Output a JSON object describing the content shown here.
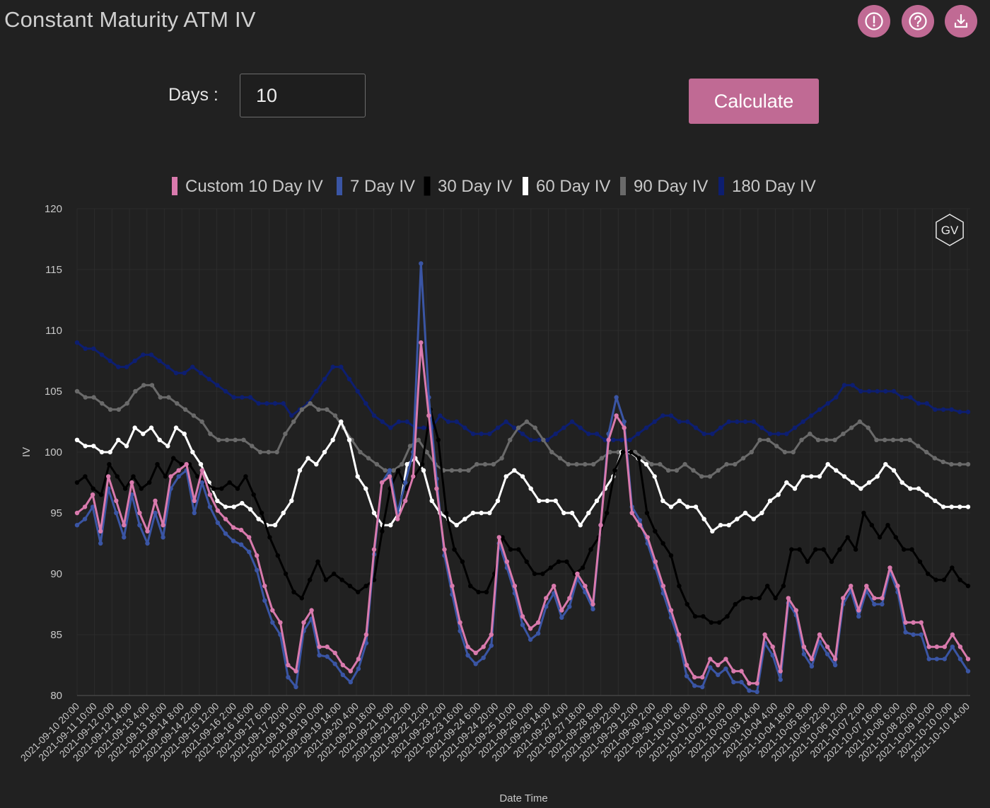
{
  "header": {
    "title": "Constant Maturity ATM IV",
    "icons": [
      "info-icon",
      "help-icon",
      "download-icon"
    ]
  },
  "controls": {
    "days_label": "Days :",
    "days_value": "10",
    "calculate_label": "Calculate"
  },
  "colors": {
    "accent": "#c06a94",
    "background": "#212121"
  },
  "chart_data": {
    "type": "line",
    "xlabel": "Date Time",
    "ylabel": "IV",
    "ylim": [
      80,
      120
    ],
    "yticks": [
      80,
      85,
      90,
      95,
      100,
      105,
      110,
      115,
      120
    ],
    "x_tick_labels": [
      "2021-09-10 20:00",
      "2021-09-11 10:00",
      "2021-09-12 0:00",
      "2021-09-12 14:00",
      "2021-09-13 4:00",
      "2021-09-13 18:00",
      "2021-09-14 8:00",
      "2021-09-14 22:00",
      "2021-09-15 12:00",
      "2021-09-16 2:00",
      "2021-09-16 16:00",
      "2021-09-17 6:00",
      "2021-09-17 20:00",
      "2021-09-18 10:00",
      "2021-09-19 0:00",
      "2021-09-19 14:00",
      "2021-09-20 4:00",
      "2021-09-20 18:00",
      "2021-09-21 8:00",
      "2021-09-21 22:00",
      "2021-09-22 12:00",
      "2021-09-23 2:00",
      "2021-09-23 16:00",
      "2021-09-24 6:00",
      "2021-09-24 20:00",
      "2021-09-25 10:00",
      "2021-09-26 0:00",
      "2021-09-26 14:00",
      "2021-09-27 4:00",
      "2021-09-27 18:00",
      "2021-09-28 8:00",
      "2021-09-28 22:00",
      "2021-09-29 12:00",
      "2021-09-30 2:00",
      "2021-09-30 16:00",
      "2021-10-01 6:00",
      "2021-10-01 20:00",
      "2021-10-02 10:00",
      "2021-10-03 0:00",
      "2021-10-03 14:00",
      "2021-10-04 4:00",
      "2021-10-04 18:00",
      "2021-10-05 8:00",
      "2021-10-05 22:00",
      "2021-10-06 12:00",
      "2021-10-07 2:00",
      "2021-10-07 16:00",
      "2021-10-08 6:00",
      "2021-10-08 20:00",
      "2021-10-09 10:00",
      "2021-10-10 0:00",
      "2021-10-10 14:00"
    ],
    "watermark": "GV",
    "legend_position": "top-center",
    "series": [
      {
        "name": "Custom 10 Day IV",
        "color": "#d97aad",
        "values": [
          95,
          95.5,
          96.5,
          93.5,
          98,
          96,
          94,
          97.5,
          95,
          93.5,
          96,
          94,
          98,
          98.5,
          99,
          96,
          98.5,
          96.5,
          95.2,
          94.5,
          93.8,
          93.6,
          93,
          91.5,
          89,
          87,
          86,
          82.5,
          82,
          86,
          87,
          84,
          84,
          83.5,
          82.5,
          82,
          83,
          85,
          92,
          97.5,
          98,
          94.5,
          96,
          98,
          109,
          103,
          97,
          92,
          89,
          86,
          84,
          83.5,
          84,
          85,
          93,
          91,
          89,
          86.5,
          85.5,
          86,
          88,
          89,
          87,
          88,
          90,
          89,
          87.5,
          94,
          101,
          103,
          102,
          95,
          94,
          93,
          91,
          89,
          87,
          85,
          82.5,
          81.5,
          81.5,
          83,
          82.5,
          83,
          82,
          82,
          81,
          81,
          85,
          84,
          82,
          88,
          87,
          84,
          83,
          85,
          84,
          83,
          88,
          89,
          87,
          89,
          88,
          88,
          90.5,
          89,
          86,
          86,
          86,
          84,
          84,
          84,
          85,
          84,
          83
        ]
      },
      {
        "name": "7 Day IV",
        "color": "#3a55a4",
        "values": [
          94,
          94.5,
          95.5,
          92.5,
          97,
          95,
          93,
          96.5,
          94,
          92.5,
          95,
          93,
          97,
          98,
          98.5,
          95,
          97.5,
          95.5,
          94.2,
          93.3,
          92.7,
          92.4,
          91.8,
          90.3,
          87.8,
          86,
          85,
          81.5,
          80.7,
          85.3,
          86.3,
          83.3,
          83.2,
          82.6,
          81.7,
          81.1,
          82.2,
          84.3,
          91.6,
          97.5,
          98.5,
          95,
          97.5,
          100,
          115.5,
          104.5,
          97.8,
          91.5,
          88.3,
          85.3,
          83.3,
          82.6,
          83.1,
          84.1,
          92.5,
          90.5,
          88.4,
          85.8,
          84.6,
          85.1,
          87.3,
          88.4,
          86.4,
          87.3,
          89.6,
          88.5,
          87.1,
          94,
          101.5,
          104.5,
          102.5,
          95.5,
          94.4,
          92.5,
          90.5,
          88.4,
          86.4,
          84.5,
          81.6,
          80.8,
          80.7,
          82.3,
          81.7,
          82.2,
          81.1,
          81.1,
          80.4,
          80.3,
          84.3,
          83.3,
          81.3,
          87.6,
          86.6,
          83.4,
          82.4,
          84.4,
          83.4,
          82.5,
          87.5,
          88.6,
          86.5,
          88.6,
          87.5,
          87.5,
          90.2,
          88.5,
          85.2,
          85,
          85,
          83,
          83,
          83,
          84,
          83,
          82
        ]
      },
      {
        "name": "30 Day IV",
        "color": "#000000",
        "values": [
          97.5,
          98,
          97,
          96.5,
          99,
          98,
          97,
          98,
          97,
          97.5,
          99,
          98,
          99.5,
          99,
          99,
          98,
          97.5,
          97,
          97,
          97.5,
          97,
          98,
          96.5,
          95,
          93,
          91.5,
          90,
          88.5,
          88,
          89.5,
          91,
          89.5,
          90,
          89.5,
          89,
          88.5,
          89,
          89.5,
          93.5,
          97,
          98.5,
          97,
          98,
          99,
          103.5,
          101,
          95,
          92,
          91,
          89,
          88.5,
          88.5,
          90,
          93,
          92,
          92,
          91,
          90,
          90,
          90.5,
          91,
          91,
          90,
          90.5,
          92,
          93,
          95,
          98.5,
          100,
          100,
          99.5,
          95,
          93.5,
          92.5,
          91.5,
          89,
          87.5,
          86.5,
          86.5,
          86,
          86,
          86.5,
          87.5,
          88,
          88,
          88,
          89,
          88,
          89,
          92,
          92,
          91,
          92,
          92,
          91,
          92,
          93,
          92,
          95,
          94,
          93,
          94,
          93,
          92,
          92,
          91,
          90,
          89.5,
          89.5,
          90.5,
          89.5,
          89
        ]
      },
      {
        "name": "60 Day IV",
        "color": "#ffffff",
        "values": [
          101,
          100.5,
          100.5,
          100,
          100,
          101,
          100.5,
          102,
          101.5,
          102,
          101,
          100.5,
          102,
          101.5,
          100,
          99,
          97.5,
          96,
          95.5,
          95.5,
          95.8,
          95.3,
          94.5,
          94,
          94,
          95,
          96,
          98.5,
          99.5,
          99,
          100,
          101,
          102.5,
          101,
          98,
          97,
          95,
          94,
          94,
          95,
          99,
          99.5,
          98.5,
          96,
          95,
          94.5,
          94,
          94.5,
          95,
          95,
          95,
          96,
          98,
          98.5,
          98,
          97,
          96,
          96,
          96,
          95,
          95,
          94,
          95,
          96,
          97,
          98,
          100,
          100,
          99.5,
          99,
          98,
          96,
          95.5,
          96,
          95.5,
          95.5,
          94.5,
          93.5,
          94,
          94,
          94.5,
          95,
          94.5,
          95,
          96,
          96.5,
          97.5,
          97,
          98,
          98,
          98,
          99,
          98.5,
          98,
          97.5,
          97,
          97.5,
          98,
          99,
          98.5,
          97.5,
          97,
          97,
          96.5,
          96,
          95.5,
          95.5,
          95.5,
          95.5
        ]
      },
      {
        "name": "90 Day IV",
        "color": "#6a6a6a",
        "values": [
          105,
          104.5,
          104.5,
          104,
          103.5,
          103.5,
          104,
          105,
          105.5,
          105.5,
          104.5,
          104.5,
          104,
          103.5,
          103,
          102.5,
          101.5,
          101,
          101,
          101,
          101,
          100.5,
          100,
          100,
          100,
          101.5,
          102.5,
          103.5,
          104,
          103.5,
          103.5,
          103,
          102,
          101,
          100,
          99.5,
          99,
          98.5,
          98.5,
          99,
          100.5,
          101,
          100,
          99,
          98.5,
          98.5,
          98.5,
          98.5,
          99,
          99,
          99,
          99.5,
          101,
          102,
          102.5,
          102,
          101,
          100,
          99.5,
          99,
          99,
          99,
          99,
          99.5,
          100,
          100,
          100,
          100,
          99.5,
          99,
          99,
          98.5,
          98.5,
          99,
          98.5,
          98,
          98,
          98.5,
          99,
          99,
          99.5,
          100,
          101,
          101,
          100.5,
          100,
          100,
          101,
          101.5,
          101,
          101,
          101,
          101.5,
          102,
          102.5,
          102,
          101,
          101,
          101,
          101,
          101,
          100.5,
          100,
          99.5,
          99.2,
          99,
          99,
          99
        ]
      },
      {
        "name": "180 Day IV",
        "color": "#0d1e70",
        "values": [
          109,
          108.5,
          108.5,
          108,
          107.5,
          107,
          107,
          107.5,
          108,
          108,
          107.5,
          107,
          106.5,
          106.5,
          107,
          106.5,
          106,
          105.5,
          105,
          104.5,
          104.5,
          104.5,
          104,
          104,
          104,
          104,
          103,
          103.5,
          104,
          105,
          106,
          107,
          107,
          106,
          105,
          104,
          103,
          102.5,
          102,
          102.5,
          102.5,
          102,
          102,
          102,
          103,
          102.5,
          102.5,
          102,
          101.5,
          101.5,
          101.5,
          102,
          102.5,
          102,
          101.5,
          101,
          101,
          101,
          101.5,
          102,
          102.5,
          102,
          101.5,
          101.5,
          101,
          101,
          101,
          101,
          101.5,
          102,
          102.5,
          103,
          103,
          102.5,
          102.5,
          102,
          101.5,
          101.5,
          102,
          102.5,
          102.5,
          102.5,
          102.5,
          102,
          101.5,
          101.5,
          101.5,
          102,
          102.5,
          103,
          103.5,
          104,
          104.5,
          105.5,
          105.5,
          105,
          105,
          105,
          105,
          105,
          104.5,
          104.5,
          104,
          104,
          103.5,
          103.5,
          103.5,
          103.3,
          103.3
        ]
      }
    ]
  }
}
